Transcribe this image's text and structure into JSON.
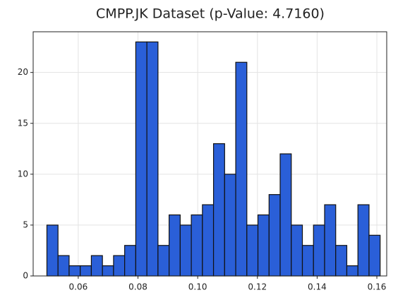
{
  "chart_data": {
    "type": "histogram",
    "title": "CMPP.JK Dataset (p-Value: 4.7160)",
    "bins": [
      0.0495,
      0.05322,
      0.05694,
      0.06066,
      0.06438,
      0.0681,
      0.07182,
      0.07554,
      0.07926,
      0.08298,
      0.0867,
      0.09042,
      0.09414,
      0.09786,
      0.10158,
      0.1053,
      0.10902,
      0.11274,
      0.11646,
      0.12018,
      0.1239,
      0.12762,
      0.13134,
      0.13506,
      0.13878,
      0.1425,
      0.14622,
      0.14994,
      0.15366,
      0.15738,
      0.1611
    ],
    "values": [
      5,
      2,
      1,
      1,
      2,
      1,
      2,
      3,
      23,
      23,
      3,
      6,
      5,
      6,
      7,
      13,
      10,
      21,
      5,
      6,
      8,
      12,
      5,
      3,
      5,
      7,
      3,
      1,
      7,
      4
    ],
    "color": "#2a5fd8",
    "edgecolor": "#111111",
    "xlim": [
      0.0449,
      0.1633
    ],
    "ylim": [
      0,
      24
    ],
    "xticks": [
      0.06,
      0.08,
      {
        "value": 0.1,
        "label": "0.10"
      },
      0.12,
      0.14,
      0.16
    ],
    "yticks": [
      0,
      5,
      10,
      15,
      20
    ],
    "grid": true
  }
}
